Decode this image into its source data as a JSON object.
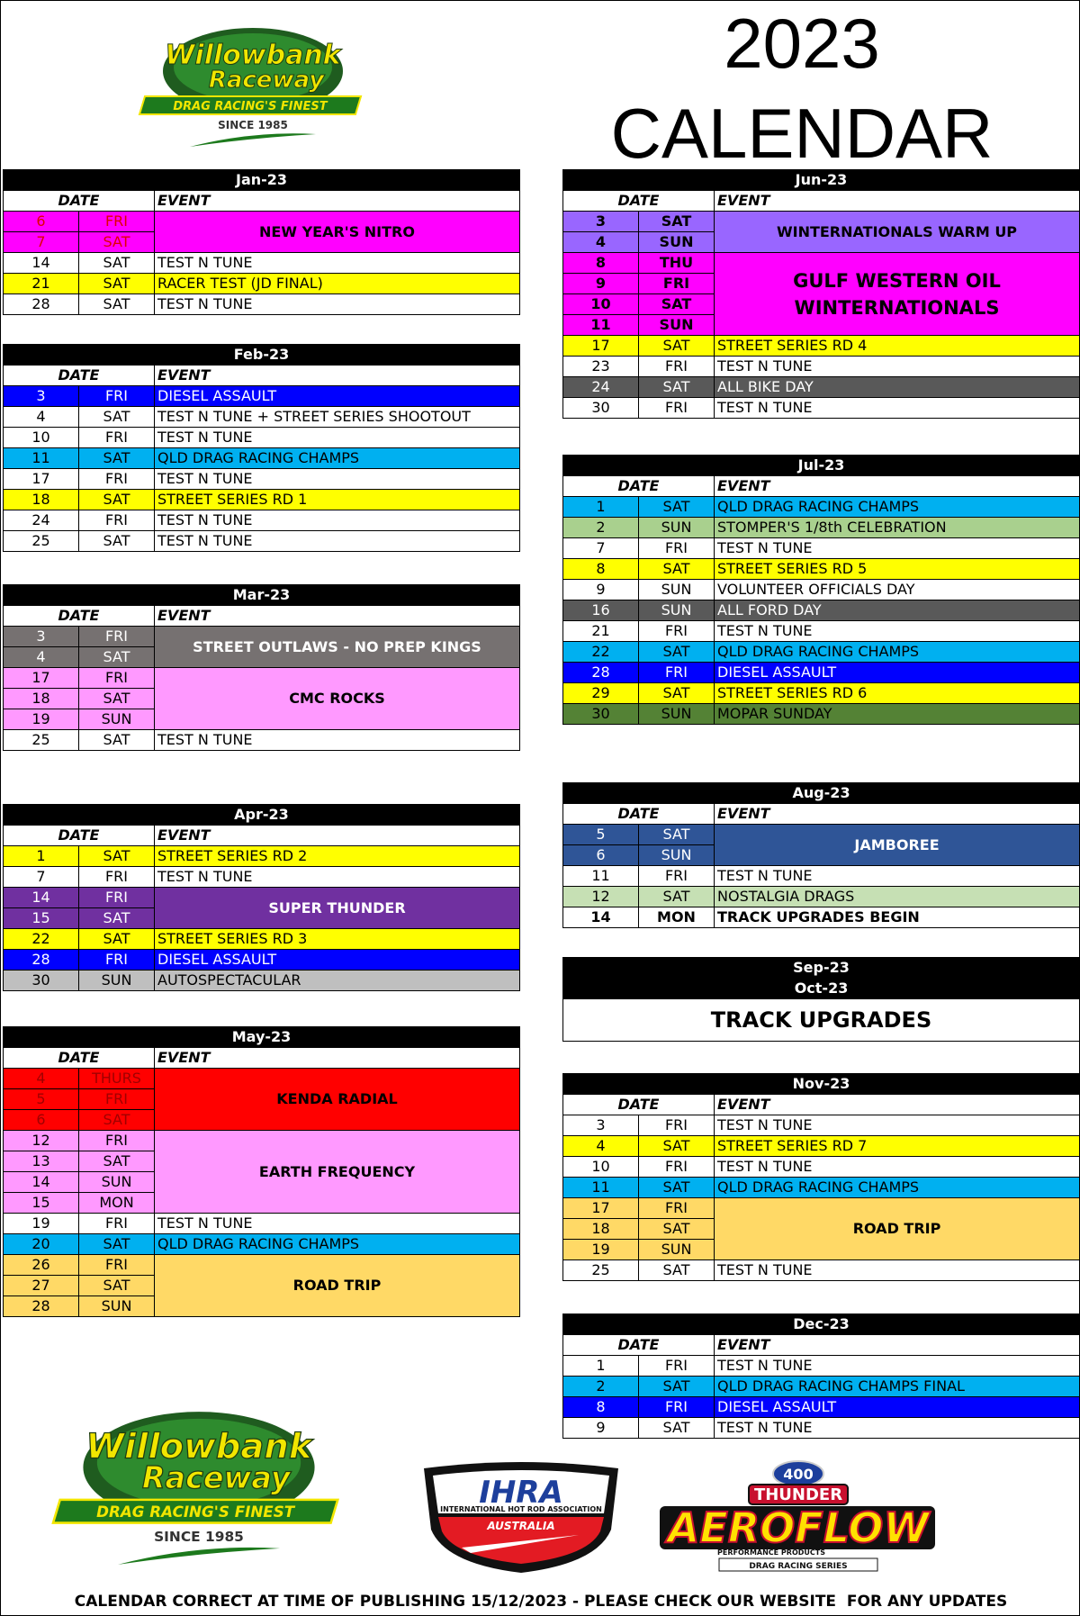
{
  "header": {
    "year": "2023",
    "title": "CALENDAR"
  },
  "logos": {
    "willowbank": {
      "line1": "Willowbank",
      "line2": "Raceway",
      "tagline": "DRAG RACING'S FINEST",
      "since": "SINCE 1985"
    },
    "ihra": {
      "name": "IHRA",
      "full": "INTERNATIONAL HOT ROD ASSOCIATION",
      "country": "AUSTRALIA"
    },
    "aeroflow": {
      "number": "400",
      "series": "THUNDER",
      "brand": "AEROFLOW",
      "sub": "PERFORMANCE PRODUCTS",
      "bottom": "DRAG RACING SERIES"
    }
  },
  "table_headers": {
    "date": "DATE",
    "event": "EVENT"
  },
  "months": [
    {
      "title": "Jan-23",
      "events": [
        {
          "name": "NEW YEAR'S NITRO",
          "color": "#ff00ff",
          "date_color": "#e00000",
          "days": [
            [
              "6",
              "FRI"
            ],
            [
              "7",
              "SAT"
            ]
          ]
        },
        {
          "name": "TEST N TUNE",
          "color": "#ffffff",
          "days": [
            [
              "14",
              "SAT"
            ]
          ]
        },
        {
          "name": "RACER TEST (JD FINAL)",
          "color": "#ffff00",
          "days": [
            [
              "21",
              "SAT"
            ]
          ]
        },
        {
          "name": "TEST N TUNE",
          "color": "#ffffff",
          "days": [
            [
              "28",
              "SAT"
            ]
          ]
        }
      ]
    },
    {
      "title": "Feb-23",
      "events": [
        {
          "name": "DIESEL ASSAULT",
          "color": "#0000ff",
          "text_color": "#ffffff",
          "days": [
            [
              "3",
              "FRI"
            ]
          ]
        },
        {
          "name": "TEST N TUNE + STREET SERIES SHOOTOUT",
          "color": "#ffffff",
          "days": [
            [
              "4",
              "SAT"
            ]
          ]
        },
        {
          "name": "TEST N TUNE",
          "color": "#ffffff",
          "days": [
            [
              "10",
              "FRI"
            ]
          ]
        },
        {
          "name": "QLD DRAG RACING CHAMPS",
          "color": "#00b0f0",
          "days": [
            [
              "11",
              "SAT"
            ]
          ]
        },
        {
          "name": "TEST N TUNE",
          "color": "#ffffff",
          "days": [
            [
              "17",
              "FRI"
            ]
          ]
        },
        {
          "name": "STREET SERIES RD 1",
          "color": "#ffff00",
          "days": [
            [
              "18",
              "SAT"
            ]
          ]
        },
        {
          "name": "TEST N TUNE",
          "color": "#ffffff",
          "days": [
            [
              "24",
              "FRI"
            ]
          ]
        },
        {
          "name": "TEST N TUNE",
          "color": "#ffffff",
          "days": [
            [
              "25",
              "SAT"
            ]
          ]
        }
      ]
    },
    {
      "title": "Mar-23",
      "events": [
        {
          "name": "STREET OUTLAWS - NO PREP KINGS",
          "color": "#767171",
          "text_color": "#ffffff",
          "days": [
            [
              "3",
              "FRI"
            ],
            [
              "4",
              "SAT"
            ]
          ]
        },
        {
          "name": "CMC ROCKS",
          "color": "#ff99ff",
          "days": [
            [
              "17",
              "FRI"
            ],
            [
              "18",
              "SAT"
            ],
            [
              "19",
              "SUN"
            ]
          ]
        },
        {
          "name": "TEST N TUNE",
          "color": "#ffffff",
          "days": [
            [
              "25",
              "SAT"
            ]
          ]
        }
      ]
    },
    {
      "title": "Apr-23",
      "events": [
        {
          "name": "STREET SERIES RD 2",
          "color": "#ffff00",
          "days": [
            [
              "1",
              "SAT"
            ]
          ]
        },
        {
          "name": "TEST N TUNE",
          "color": "#ffffff",
          "days": [
            [
              "7",
              "FRI"
            ]
          ]
        },
        {
          "name": "SUPER THUNDER",
          "color": "#7030a0",
          "text_color": "#ffffff",
          "days": [
            [
              "14",
              "FRI"
            ],
            [
              "15",
              "SAT"
            ]
          ]
        },
        {
          "name": "STREET SERIES RD 3",
          "color": "#ffff00",
          "days": [
            [
              "22",
              "SAT"
            ]
          ]
        },
        {
          "name": "DIESEL ASSAULT",
          "color": "#0000ff",
          "text_color": "#ffffff",
          "days": [
            [
              "28",
              "FRI"
            ]
          ]
        },
        {
          "name": "AUTOSPECTACULAR",
          "color": "#bfbfbf",
          "days": [
            [
              "30",
              "SUN"
            ]
          ]
        }
      ]
    },
    {
      "title": "May-23",
      "events": [
        {
          "name": "KENDA RADIAL",
          "color": "#ff0000",
          "date_color": "#a00000",
          "days": [
            [
              "4",
              "THURS"
            ],
            [
              "5",
              "FRI"
            ],
            [
              "6",
              "SAT"
            ]
          ]
        },
        {
          "name": "EARTH FREQUENCY",
          "color": "#ff99ff",
          "days": [
            [
              "12",
              "FRI"
            ],
            [
              "13",
              "SAT"
            ],
            [
              "14",
              "SUN"
            ],
            [
              "15",
              "MON"
            ]
          ]
        },
        {
          "name": "TEST N TUNE",
          "color": "#ffffff",
          "days": [
            [
              "19",
              "FRI"
            ]
          ]
        },
        {
          "name": "QLD DRAG RACING CHAMPS",
          "color": "#00b0f0",
          "days": [
            [
              "20",
              "SAT"
            ]
          ]
        },
        {
          "name": "ROAD TRIP",
          "color": "#ffd966",
          "days": [
            [
              "26",
              "FRI"
            ],
            [
              "27",
              "SAT"
            ],
            [
              "28",
              "SUN"
            ]
          ]
        }
      ]
    },
    {
      "title": "Jun-23",
      "events": [
        {
          "name": "WINTERNATIONALS WARM UP",
          "color": "#9966ff",
          "bold": true,
          "days": [
            [
              "3",
              "SAT"
            ],
            [
              "4",
              "SUN"
            ]
          ]
        },
        {
          "name": "GULF WESTERN OIL WINTERNATIONALS",
          "color": "#ff00ff",
          "bold": true,
          "days": [
            [
              "8",
              "THU"
            ],
            [
              "9",
              "FRI"
            ],
            [
              "10",
              "SAT"
            ],
            [
              "11",
              "SUN"
            ]
          ]
        },
        {
          "name": "STREET SERIES RD 4",
          "color": "#ffff00",
          "days": [
            [
              "17",
              "SAT"
            ]
          ]
        },
        {
          "name": "TEST N TUNE",
          "color": "#ffffff",
          "days": [
            [
              "23",
              "FRI"
            ]
          ]
        },
        {
          "name": "ALL BIKE DAY",
          "color": "#595959",
          "text_color": "#ffffff",
          "days": [
            [
              "24",
              "SAT"
            ]
          ]
        },
        {
          "name": "TEST N TUNE",
          "color": "#ffffff",
          "days": [
            [
              "30",
              "FRI"
            ]
          ]
        }
      ]
    },
    {
      "title": "Jul-23",
      "events": [
        {
          "name": "QLD DRAG RACING CHAMPS",
          "color": "#00b0f0",
          "days": [
            [
              "1",
              "SAT"
            ]
          ]
        },
        {
          "name": "STOMPER'S 1/8th CELEBRATION",
          "color": "#a9d08e",
          "days": [
            [
              "2",
              "SUN"
            ]
          ]
        },
        {
          "name": "TEST N TUNE",
          "color": "#ffffff",
          "days": [
            [
              "7",
              "FRI"
            ]
          ]
        },
        {
          "name": "STREET SERIES RD 5",
          "color": "#ffff00",
          "days": [
            [
              "8",
              "SAT"
            ]
          ]
        },
        {
          "name": "VOLUNTEER OFFICIALS DAY",
          "color": "#ffffff",
          "days": [
            [
              "9",
              "SUN"
            ]
          ]
        },
        {
          "name": "ALL FORD DAY",
          "color": "#595959",
          "text_color": "#ffffff",
          "days": [
            [
              "16",
              "SUN"
            ]
          ]
        },
        {
          "name": "TEST N TUNE",
          "color": "#ffffff",
          "days": [
            [
              "21",
              "FRI"
            ]
          ]
        },
        {
          "name": "QLD DRAG RACING CHAMPS",
          "color": "#00b0f0",
          "days": [
            [
              "22",
              "SAT"
            ]
          ]
        },
        {
          "name": "DIESEL ASSAULT",
          "color": "#0000ff",
          "text_color": "#ffffff",
          "days": [
            [
              "28",
              "FRI"
            ]
          ]
        },
        {
          "name": "STREET SERIES RD 6",
          "color": "#ffff00",
          "days": [
            [
              "29",
              "SAT"
            ]
          ]
        },
        {
          "name": "MOPAR SUNDAY",
          "color": "#548235",
          "days": [
            [
              "30",
              "SUN"
            ]
          ]
        }
      ]
    },
    {
      "title": "Aug-23",
      "events": [
        {
          "name": "JAMBOREE",
          "color": "#2f5597",
          "text_color": "#ffffff",
          "days": [
            [
              "5",
              "SAT"
            ],
            [
              "6",
              "SUN"
            ]
          ]
        },
        {
          "name": "TEST N TUNE",
          "color": "#ffffff",
          "days": [
            [
              "11",
              "FRI"
            ]
          ]
        },
        {
          "name": "NOSTALGIA DRAGS",
          "color": "#c6e0b4",
          "days": [
            [
              "12",
              "SAT"
            ]
          ]
        },
        {
          "name": "TRACK UPGRADES BEGIN",
          "color": "#ffffff",
          "bold": true,
          "days": [
            [
              "14",
              "MON"
            ]
          ]
        }
      ]
    },
    {
      "titles": [
        "Sep-23",
        "Oct-23"
      ],
      "note": "TRACK UPGRADES"
    },
    {
      "title": "Nov-23",
      "events": [
        {
          "name": "TEST N TUNE",
          "color": "#ffffff",
          "days": [
            [
              "3",
              "FRI"
            ]
          ]
        },
        {
          "name": "STREET SERIES RD 7",
          "color": "#ffff00",
          "days": [
            [
              "4",
              "SAT"
            ]
          ]
        },
        {
          "name": "TEST N TUNE",
          "color": "#ffffff",
          "days": [
            [
              "10",
              "FRI"
            ]
          ]
        },
        {
          "name": "QLD DRAG RACING CHAMPS",
          "color": "#00b0f0",
          "days": [
            [
              "11",
              "SAT"
            ]
          ]
        },
        {
          "name": "ROAD TRIP",
          "color": "#ffd966",
          "days": [
            [
              "17",
              "FRI"
            ],
            [
              "18",
              "SAT"
            ],
            [
              "19",
              "SUN"
            ]
          ]
        },
        {
          "name": "TEST N TUNE",
          "color": "#ffffff",
          "days": [
            [
              "25",
              "SAT"
            ]
          ]
        }
      ]
    },
    {
      "title": "Dec-23",
      "events": [
        {
          "name": "TEST N TUNE",
          "color": "#ffffff",
          "days": [
            [
              "1",
              "FRI"
            ]
          ]
        },
        {
          "name": "QLD DRAG RACING CHAMPS FINAL",
          "color": "#00b0f0",
          "days": [
            [
              "2",
              "SAT"
            ]
          ]
        },
        {
          "name": "DIESEL ASSAULT",
          "color": "#0000ff",
          "text_color": "#ffffff",
          "days": [
            [
              "8",
              "FRI"
            ]
          ]
        },
        {
          "name": "TEST N TUNE",
          "color": "#ffffff",
          "days": [
            [
              "9",
              "SAT"
            ]
          ]
        }
      ]
    }
  ],
  "footer": "CALENDAR CORRECT AT TIME OF PUBLISHING 15/12/2023 - PLEASE CHECK OUR WEBSITE  FOR ANY UPDATES"
}
